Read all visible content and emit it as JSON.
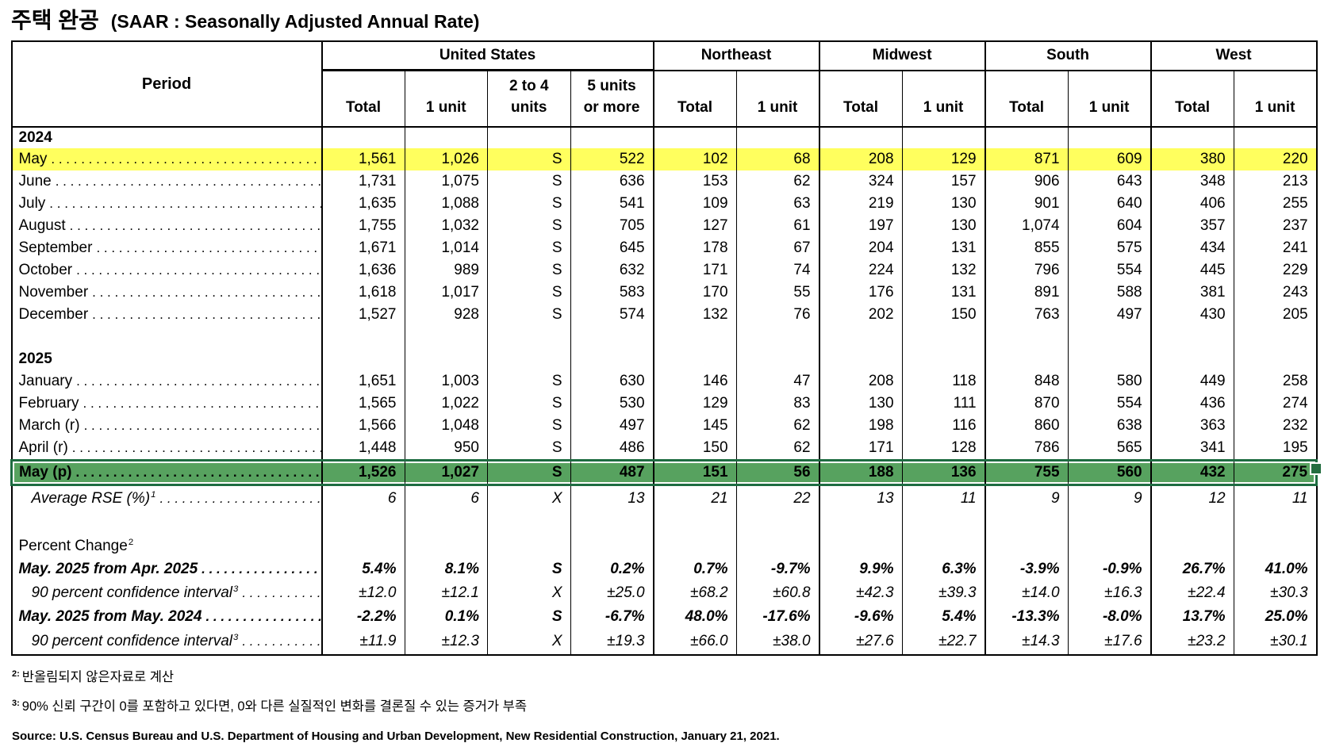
{
  "title": {
    "korean": "주택 완공",
    "english": "(SAAR : Seasonally Adjusted Annual Rate)"
  },
  "colors": {
    "highlight_yellow": "#ffff5e",
    "selection_fill": "#57a25f",
    "selection_border": "#1e6c41"
  },
  "table": {
    "period_header": "Period",
    "groups": [
      {
        "label": "United States",
        "span": 4
      },
      {
        "label": "Northeast",
        "span": 2
      },
      {
        "label": "Midwest",
        "span": 2
      },
      {
        "label": "South",
        "span": 2
      },
      {
        "label": "West",
        "span": 2
      }
    ],
    "sub_headers": [
      "Total",
      "1 unit",
      "2 to 4\nunits",
      "5 units\nor more",
      "Total",
      "1 unit",
      "Total",
      "1 unit",
      "Total",
      "1 unit",
      "Total",
      "1 unit"
    ],
    "rows": [
      {
        "type": "year",
        "label": "2024"
      },
      {
        "type": "month",
        "label": "May",
        "highlight": "yellow",
        "values": [
          "1,561",
          "1,026",
          "S",
          "522",
          "102",
          "68",
          "208",
          "129",
          "871",
          "609",
          "380",
          "220"
        ]
      },
      {
        "type": "month",
        "label": "June",
        "values": [
          "1,731",
          "1,075",
          "S",
          "636",
          "153",
          "62",
          "324",
          "157",
          "906",
          "643",
          "348",
          "213"
        ]
      },
      {
        "type": "month",
        "label": "July",
        "values": [
          "1,635",
          "1,088",
          "S",
          "541",
          "109",
          "63",
          "219",
          "130",
          "901",
          "640",
          "406",
          "255"
        ]
      },
      {
        "type": "month",
        "label": "August",
        "values": [
          "1,755",
          "1,032",
          "S",
          "705",
          "127",
          "61",
          "197",
          "130",
          "1,074",
          "604",
          "357",
          "237"
        ]
      },
      {
        "type": "month",
        "label": "September",
        "values": [
          "1,671",
          "1,014",
          "S",
          "645",
          "178",
          "67",
          "204",
          "131",
          "855",
          "575",
          "434",
          "241"
        ]
      },
      {
        "type": "month",
        "label": "October",
        "values": [
          "1,636",
          "989",
          "S",
          "632",
          "171",
          "74",
          "224",
          "132",
          "796",
          "554",
          "445",
          "229"
        ]
      },
      {
        "type": "month",
        "label": "November",
        "values": [
          "1,618",
          "1,017",
          "S",
          "583",
          "170",
          "55",
          "176",
          "131",
          "891",
          "588",
          "381",
          "243"
        ]
      },
      {
        "type": "month",
        "label": "December",
        "values": [
          "1,527",
          "928",
          "S",
          "574",
          "132",
          "76",
          "202",
          "150",
          "763",
          "497",
          "430",
          "205"
        ]
      },
      {
        "type": "blank"
      },
      {
        "type": "year2",
        "label": "2025"
      },
      {
        "type": "month",
        "label": "January",
        "values": [
          "1,651",
          "1,003",
          "S",
          "630",
          "146",
          "47",
          "208",
          "118",
          "848",
          "580",
          "449",
          "258"
        ]
      },
      {
        "type": "month",
        "label": "February",
        "values": [
          "1,565",
          "1,022",
          "S",
          "530",
          "129",
          "83",
          "130",
          "111",
          "870",
          "554",
          "436",
          "274"
        ]
      },
      {
        "type": "month",
        "label": "March (r)",
        "values": [
          "1,566",
          "1,048",
          "S",
          "497",
          "145",
          "62",
          "198",
          "116",
          "860",
          "638",
          "363",
          "232"
        ]
      },
      {
        "type": "month",
        "label": "April (r)",
        "values": [
          "1,448",
          "950",
          "S",
          "486",
          "150",
          "62",
          "171",
          "128",
          "786",
          "565",
          "341",
          "195"
        ]
      },
      {
        "type": "month",
        "label": "May (p)",
        "highlight": "green",
        "values": [
          "1,526",
          "1,027",
          "S",
          "487",
          "151",
          "56",
          "188",
          "136",
          "755",
          "560",
          "432",
          "275"
        ]
      },
      {
        "type": "rse",
        "label": "Average RSE (%)",
        "sup": "1",
        "values": [
          "6",
          "6",
          "X",
          "13",
          "21",
          "22",
          "13",
          "11",
          "9",
          "9",
          "12",
          "11"
        ]
      },
      {
        "type": "gap"
      },
      {
        "type": "section",
        "label": "Percent Change",
        "sup": "2"
      },
      {
        "type": "pct",
        "label": "May. 2025 from Apr. 2025",
        "values": [
          "5.4%",
          "8.1%",
          "S",
          "0.2%",
          "0.7%",
          "-9.7%",
          "9.9%",
          "6.3%",
          "-3.9%",
          "-0.9%",
          "26.7%",
          "41.0%"
        ]
      },
      {
        "type": "ci",
        "label": "90 percent confidence interval",
        "sup": "3",
        "values": [
          "±12.0",
          "±12.1",
          "X",
          "±25.0",
          "±68.2",
          "±60.8",
          "±42.3",
          "±39.3",
          "±14.0",
          "±16.3",
          "±22.4",
          "±30.3"
        ]
      },
      {
        "type": "pct",
        "label": "May. 2025 from May. 2024",
        "values": [
          "-2.2%",
          "0.1%",
          "S",
          "-6.7%",
          "48.0%",
          "-17.6%",
          "-9.6%",
          "5.4%",
          "-13.3%",
          "-8.0%",
          "13.7%",
          "25.0%"
        ]
      },
      {
        "type": "ci2",
        "label": "90 percent confidence interval",
        "sup": "3",
        "values": [
          "±11.9",
          "±12.3",
          "X",
          "±19.3",
          "±66.0",
          "±38.0",
          "±27.6",
          "±22.7",
          "±14.3",
          "±17.6",
          "±23.2",
          "±30.1"
        ]
      }
    ]
  },
  "footnotes": [
    {
      "sup": "2:",
      "text": "반올림되지 않은자료로 계산"
    },
    {
      "sup": "3:",
      "text": "90% 신뢰 구간이 0를 포함하고 있다면, 0와 다른 실질적인 변화를 결론질 수 있는 증거가 부족"
    }
  ],
  "source": "Source: U.S. Census Bureau and U.S. Department of Housing and Urban Development, New Residential Construction, January 21, 2021."
}
